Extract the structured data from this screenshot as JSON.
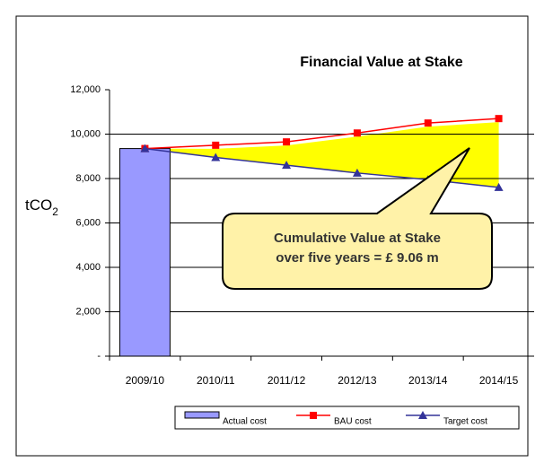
{
  "chart_data": {
    "type": "bar_line",
    "title": "Financial Value at Stake",
    "y_label": "tCO",
    "y_label_sub": "2",
    "categories": [
      "2009/10",
      "2010/11",
      "2011/12",
      "2012/13",
      "2013/14",
      "2014/15"
    ],
    "ylim": [
      0,
      12000
    ],
    "yticks": [
      {
        "value": 0,
        "label": "-"
      },
      {
        "value": 2000,
        "label": "2,000"
      },
      {
        "value": 4000,
        "label": "4,000"
      },
      {
        "value": 6000,
        "label": "6,000"
      },
      {
        "value": 8000,
        "label": "8,000"
      },
      {
        "value": 10000,
        "label": "10,000"
      },
      {
        "value": 12000,
        "label": "12,000"
      }
    ],
    "grid": true,
    "series": [
      {
        "name": "Actual cost",
        "kind": "bar",
        "color": "#9999ff",
        "values": [
          9350,
          null,
          null,
          null,
          null,
          null
        ]
      },
      {
        "name": "BAU cost",
        "kind": "line",
        "color": "#ff0000",
        "marker": "square",
        "values": [
          9350,
          9500,
          9650,
          10050,
          10500,
          10700
        ]
      },
      {
        "name": "Target cost",
        "kind": "line",
        "color": "#333399",
        "marker": "triangle",
        "values": [
          9350,
          8950,
          8600,
          8250,
          7950,
          7600
        ]
      }
    ],
    "highlight_color": "#ffff00",
    "annotation": [
      "Cumulative Value at Stake",
      "over five years =  £ 9.06 m"
    ],
    "legend": "bottom"
  }
}
